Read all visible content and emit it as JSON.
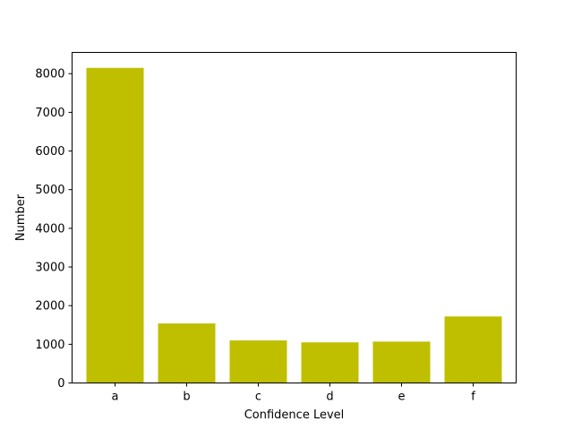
{
  "chart_data": {
    "type": "bar",
    "categories": [
      "a",
      "b",
      "c",
      "d",
      "e",
      "f"
    ],
    "values": [
      8150,
      1540,
      1100,
      1050,
      1070,
      1720
    ],
    "title": "",
    "xlabel": "Confidence Level",
    "ylabel": "Number",
    "ylim": [
      0,
      8550
    ],
    "yticks": [
      0,
      1000,
      2000,
      3000,
      4000,
      5000,
      6000,
      7000,
      8000
    ],
    "bar_color": "#bfbf00",
    "grid": false,
    "legend": "none"
  }
}
